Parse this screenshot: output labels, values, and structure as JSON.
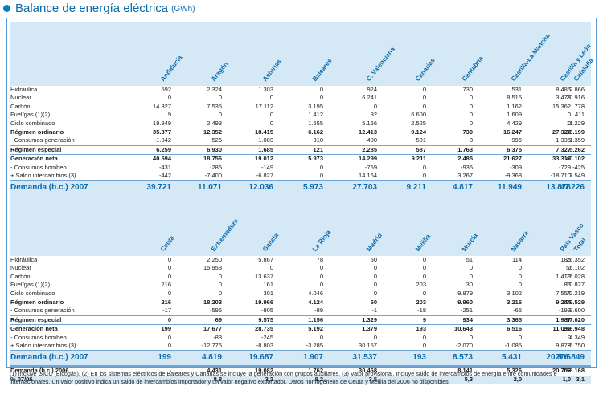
{
  "page": {
    "title": "Balance de energía eléctrica",
    "unit": "(GWh)"
  },
  "row_labels": [
    "Hidráulica",
    "Nuclear",
    "Carbón",
    "Fuel/gas (1)(2)",
    "Ciclo combinado",
    "Régimen ordinario",
    " - Consumos generación",
    "Régimen especial",
    "Generación neta",
    " - Consumos bombeo",
    " + Saldo intercambios (3)",
    "Demanda (b.c.) 2007",
    "Demanda (b.c.) 2006",
    "% 07/06"
  ],
  "row_styles": [
    "n",
    "n",
    "n",
    "n",
    "n",
    "b",
    "n",
    "b",
    "b",
    "n",
    "n",
    "big",
    "b",
    "b"
  ],
  "tables": [
    {
      "columns": [
        "Andalucía",
        "Aragón",
        "Asturias",
        "Baleares",
        "C. Valenciana",
        "Canarias",
        "Cantabria",
        "Castilla-La Mancha",
        "Castilla y León",
        "Cataluña"
      ],
      "rows": [
        [
          "592",
          "2.324",
          "1.303",
          "0",
          "924",
          "0",
          "730",
          "531",
          "8.485",
          "2.866"
        ],
        [
          "0",
          "0",
          "0",
          "0",
          "6.241",
          "0",
          "0",
          "8.515",
          "3.478",
          "20.916"
        ],
        [
          "14.827",
          "7.535",
          "17.112",
          "3.195",
          "0",
          "0",
          "0",
          "1.162",
          "15.362",
          "778"
        ],
        [
          "9",
          "0",
          "0",
          "1.412",
          "92",
          "6.600",
          "0",
          "1.609",
          "0",
          "411"
        ],
        [
          "19.949",
          "2.493",
          "0",
          "1.555",
          "5.156",
          "2.525",
          "0",
          "4.429",
          "0",
          "11.229"
        ],
        [
          "35.377",
          "12.352",
          "18.415",
          "6.162",
          "12.413",
          "9.124",
          "730",
          "16.247",
          "27.325",
          "36.199"
        ],
        [
          "-1.042",
          "-526",
          "-1.089",
          "-310",
          "-400",
          "-501",
          "-8",
          "-996",
          "-1.335",
          "-1.359"
        ],
        [
          "6.259",
          "6.930",
          "1.685",
          "121",
          "2.285",
          "587",
          "1.763",
          "6.375",
          "7.327",
          "5.262"
        ],
        [
          "40.594",
          "18.756",
          "19.012",
          "5.973",
          "14.299",
          "9.211",
          "2.485",
          "21.627",
          "33.318",
          "40.102"
        ],
        [
          "-431",
          "-285",
          "-149",
          "0",
          "-759",
          "0",
          "-935",
          "-309",
          "-729",
          "-425"
        ],
        [
          "-442",
          "-7.400",
          "-6.827",
          "0",
          "14.164",
          "0",
          "3.267",
          "-9.368",
          "-18.710",
          "7.549"
        ],
        [
          "39.721",
          "11.071",
          "12.036",
          "5.973",
          "27.703",
          "9.211",
          "4.817",
          "11.949",
          "13.878",
          "47.226"
        ],
        [
          "38.925",
          "10.868",
          "11.292",
          "5.911",
          "26.301",
          "8.812",
          "4.810",
          "11.419",
          "13.535",
          "46.379"
        ],
        [
          "2,0",
          "1,9",
          "6,6",
          "1,0",
          "5,3",
          "4,5",
          "0,1",
          "4,6",
          "2,5",
          "1,8"
        ]
      ]
    },
    {
      "columns": [
        "Ceuta",
        "Extremadura",
        "Galicia",
        "La Rioja",
        "Madrid",
        "Melilla",
        "Murcia",
        "Navarra",
        "País Vasco",
        "Total"
      ],
      "rows": [
        [
          "0",
          "2.250",
          "5.867",
          "78",
          "50",
          "0",
          "51",
          "114",
          "186",
          "26.352"
        ],
        [
          "0",
          "15.953",
          "0",
          "0",
          "0",
          "0",
          "0",
          "0",
          "0",
          "55.102"
        ],
        [
          "0",
          "0",
          "13.637",
          "0",
          "0",
          "0",
          "0",
          "0",
          "1.419",
          "75.028"
        ],
        [
          "216",
          "0",
          "161",
          "0",
          "0",
          "203",
          "30",
          "0",
          "85",
          "10.827"
        ],
        [
          "0",
          "0",
          "301",
          "4.046",
          "0",
          "0",
          "9.879",
          "3.102",
          "7.554",
          "72.219"
        ],
        [
          "216",
          "18.203",
          "19.966",
          "4.124",
          "50",
          "203",
          "9.960",
          "3.216",
          "9.244",
          "239.529"
        ],
        [
          "-17",
          "-595",
          "-805",
          "-89",
          "-1",
          "-18",
          "-251",
          "-65",
          "-192",
          "-9.600"
        ],
        [
          "0",
          "69",
          "9.575",
          "1.156",
          "1.329",
          "9",
          "934",
          "3.365",
          "1.987",
          "57.020"
        ],
        [
          "199",
          "17.677",
          "28.735",
          "5.192",
          "1.379",
          "193",
          "10.643",
          "6.516",
          "11.039",
          "286.948"
        ],
        [
          "0",
          "-83",
          "-245",
          "0",
          "0",
          "0",
          "0",
          "0",
          "0",
          "-4.349"
        ],
        [
          "0",
          "-12.775",
          "-8.803",
          "-3.285",
          "30.157",
          "0",
          "-2.070",
          "-1.085",
          "9.878",
          "-5.750"
        ],
        [
          "199",
          "4.819",
          "19.687",
          "1.907",
          "31.537",
          "193",
          "8.573",
          "5.431",
          "20.916",
          "276.849"
        ],
        [
          "-",
          "4.431",
          "19.082",
          "1.762",
          "30.468",
          "-",
          "8.141",
          "5.326",
          "20.703",
          "268.168"
        ],
        [
          "-",
          "8,8",
          "3,2",
          "8,2",
          "3,5",
          "-",
          "5,3",
          "2,0",
          "1,0",
          "3,1"
        ]
      ]
    }
  ],
  "footnote": "(1) Incluye GICC (Elcogás). (2) En los sistemas eléctricos de Baleares y Canarias se incluye la generación con grupos auxiliares. (3) Valor provisional. Incluye saldo de intercambios de energía entre comunidades e internacionales. Un valor positivo indica un saldo de intercambios importador y un valor negativo exportador. Datos homogéneos de Ceuta y Melilla del 2006 no disponibles.",
  "colors": {
    "accent": "#0a6aa8",
    "band": "#d5e8f6",
    "border": "#5b9bd5"
  }
}
